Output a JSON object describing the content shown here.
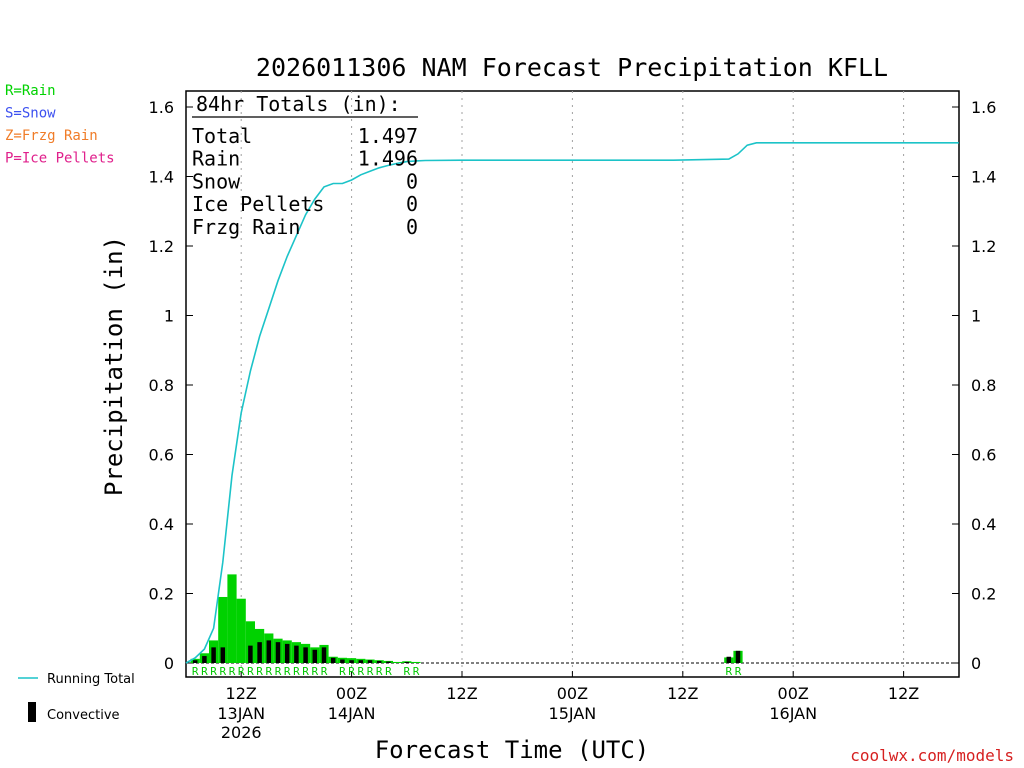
{
  "chart_data": {
    "type": "bar",
    "title": "2026011306 NAM Forecast Precipitation KFLL",
    "ylabel": "Precipitation (in)",
    "xlabel": "Forecast Time (UTC)",
    "ylim": [
      0,
      1.65
    ],
    "xlim_hours": [
      0,
      84
    ],
    "yticks": [
      "0",
      "0.2",
      "0.4",
      "0.6",
      "0.8",
      "1",
      "1.2",
      "1.4",
      "1.6"
    ],
    "ytick_values": [
      0,
      0.2,
      0.4,
      0.6,
      0.8,
      1.0,
      1.2,
      1.4,
      1.6
    ],
    "xticks": [
      {
        "hour": 6,
        "label": "12Z",
        "sub1": "13JAN",
        "sub2": "2026"
      },
      {
        "hour": 18,
        "label": "00Z",
        "sub1": "14JAN",
        "sub2": ""
      },
      {
        "hour": 30,
        "label": "12Z",
        "sub1": "",
        "sub2": ""
      },
      {
        "hour": 42,
        "label": "00Z",
        "sub1": "15JAN",
        "sub2": ""
      },
      {
        "hour": 54,
        "label": "12Z",
        "sub1": "",
        "sub2": ""
      },
      {
        "hour": 66,
        "label": "00Z",
        "sub1": "16JAN",
        "sub2": ""
      },
      {
        "hour": 78,
        "label": "12Z",
        "sub1": "",
        "sub2": ""
      }
    ],
    "bar_hours": [
      1,
      2,
      3,
      4,
      5,
      6,
      7,
      8,
      9,
      10,
      11,
      12,
      13,
      14,
      15,
      16,
      17,
      18,
      19,
      20,
      21,
      22,
      23,
      24,
      25,
      59,
      60
    ],
    "precip_type_codes": [
      "R",
      "R",
      "R",
      "R",
      "R",
      "R",
      "R",
      "R",
      "R",
      "R",
      "R",
      "R",
      "R",
      "R",
      "R",
      "",
      "R",
      "R",
      "R",
      "R",
      "R",
      "R",
      "",
      "R",
      "R",
      "R",
      "R"
    ],
    "series": [
      {
        "name": "Precip",
        "color": "#00d200",
        "values": [
          0.012,
          0.028,
          0.065,
          0.19,
          0.255,
          0.185,
          0.12,
          0.098,
          0.085,
          0.07,
          0.065,
          0.06,
          0.055,
          0.045,
          0.052,
          0.018,
          0.015,
          0.014,
          0.012,
          0.01,
          0.008,
          0.006,
          0.003,
          0.005,
          0.003,
          0.016,
          0.035
        ]
      },
      {
        "name": "Convective",
        "color": "#000000",
        "values": [
          0.008,
          0.02,
          0.045,
          0.045,
          0.0,
          0.0,
          0.05,
          0.06,
          0.065,
          0.06,
          0.055,
          0.05,
          0.045,
          0.038,
          0.045,
          0.015,
          0.01,
          0.008,
          0.008,
          0.008,
          0.006,
          0.004,
          0.0,
          0.003,
          0.0,
          0.018,
          0.035
        ]
      },
      {
        "name": "Running Total",
        "color": "#1cc3c8",
        "x": [
          0,
          1,
          2,
          3,
          4,
          5,
          6,
          7,
          8,
          9,
          10,
          11,
          12,
          13,
          14,
          15,
          16,
          17,
          18,
          19,
          20,
          21,
          22,
          23,
          24,
          25,
          26,
          30,
          40,
          53,
          59,
          60,
          61,
          62,
          84
        ],
        "values": [
          0.0,
          0.015,
          0.04,
          0.1,
          0.29,
          0.54,
          0.72,
          0.84,
          0.94,
          1.02,
          1.1,
          1.17,
          1.23,
          1.29,
          1.335,
          1.37,
          1.38,
          1.38,
          1.39,
          1.405,
          1.415,
          1.425,
          1.432,
          1.438,
          1.443,
          1.445,
          1.446,
          1.447,
          1.447,
          1.447,
          1.45,
          1.465,
          1.49,
          1.497,
          1.497
        ]
      }
    ]
  },
  "legend": {
    "ptypes": [
      {
        "text": "R=Rain",
        "color": "#00d200"
      },
      {
        "text": "S=Snow",
        "color": "#3c50f0"
      },
      {
        "text": "Z=Frzg Rain",
        "color": "#f07c28"
      },
      {
        "text": "P=Ice Pellets",
        "color": "#e0208c"
      }
    ],
    "running_total_label": "Running Total",
    "convective_label": "Convective"
  },
  "totals": {
    "header": "84hr Totals (in):",
    "rows": [
      {
        "label": "Total",
        "value": "1.497"
      },
      {
        "label": "Rain",
        "value": "1.496"
      },
      {
        "label": "Snow",
        "value": "0"
      },
      {
        "label": "Ice Pellets",
        "value": "0"
      },
      {
        "label": "Frzg Rain",
        "value": "0"
      }
    ]
  },
  "footer": "coolwx.com/models"
}
